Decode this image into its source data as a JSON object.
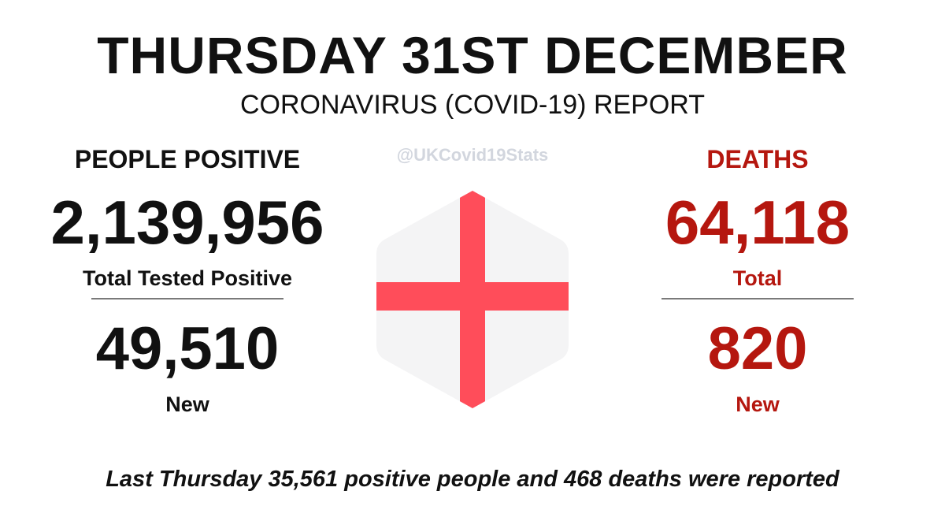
{
  "header": {
    "title": "THURSDAY 31ST DECEMBER",
    "subtitle": "CORONAVIRUS (COVID-19) REPORT"
  },
  "watermark": "@UKCovid19Stats",
  "positive": {
    "heading": "PEOPLE POSITIVE",
    "total": "2,139,956",
    "total_caption": "Total Tested Positive",
    "new": "49,510",
    "new_caption": "New"
  },
  "deaths": {
    "heading": "DEATHS",
    "total": "64,118",
    "total_caption": "Total",
    "new": "820",
    "new_caption": "New"
  },
  "footer": {
    "note": "Last Thursday 35,561 positive people and 468 deaths were reported"
  },
  "flag": {
    "icon": "england-flag-icon",
    "cross_color": "#ff4d5a",
    "field_color": "#f4f4f5"
  },
  "colors": {
    "deaths_accent": "#b5170f",
    "text": "#111111"
  }
}
